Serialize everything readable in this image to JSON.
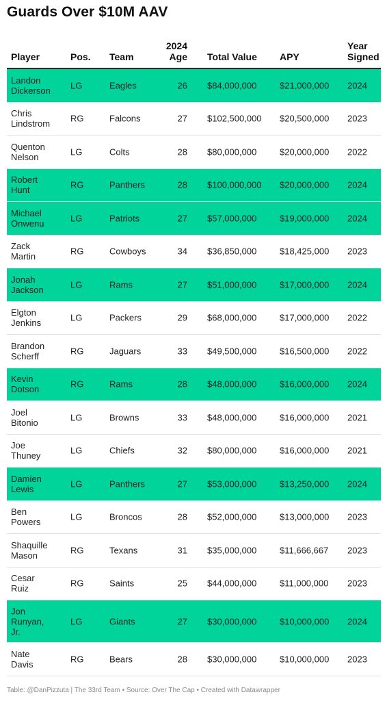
{
  "title": "Guards Over $10M AAV",
  "columns": {
    "player": "Player",
    "pos": "Pos.",
    "team": "Team",
    "age_line1": "2024",
    "age_line2": "Age",
    "total": "Total Value",
    "apy": "APY",
    "year_line1": "Year",
    "year_line2": "Signed"
  },
  "highlight_color": "#00d49a",
  "rows": [
    {
      "first": "Landon",
      "last": "Dickerson",
      "pos": "LG",
      "team": "Eagles",
      "age": "26",
      "total": "$84,000,000",
      "apy": "$21,000,000",
      "year": "2024",
      "highlight": true
    },
    {
      "first": "Chris",
      "last": "Lindstrom",
      "pos": "RG",
      "team": "Falcons",
      "age": "27",
      "total": "$102,500,000",
      "apy": "$20,500,000",
      "year": "2023",
      "highlight": false
    },
    {
      "first": "Quenton",
      "last": "Nelson",
      "pos": "LG",
      "team": "Colts",
      "age": "28",
      "total": "$80,000,000",
      "apy": "$20,000,000",
      "year": "2022",
      "highlight": false
    },
    {
      "first": "Robert",
      "last": "Hunt",
      "pos": "RG",
      "team": "Panthers",
      "age": "28",
      "total": "$100,000,000",
      "apy": "$20,000,000",
      "year": "2024",
      "highlight": true
    },
    {
      "first": "Michael",
      "last": "Onwenu",
      "pos": "LG",
      "team": "Patriots",
      "age": "27",
      "total": "$57,000,000",
      "apy": "$19,000,000",
      "year": "2024",
      "highlight": true
    },
    {
      "first": "Zack",
      "last": "Martin",
      "pos": "RG",
      "team": "Cowboys",
      "age": "34",
      "total": "$36,850,000",
      "apy": "$18,425,000",
      "year": "2023",
      "highlight": false
    },
    {
      "first": "Jonah",
      "last": "Jackson",
      "pos": "LG",
      "team": "Rams",
      "age": "27",
      "total": "$51,000,000",
      "apy": "$17,000,000",
      "year": "2024",
      "highlight": true
    },
    {
      "first": "Elgton",
      "last": "Jenkins",
      "pos": "LG",
      "team": "Packers",
      "age": "29",
      "total": "$68,000,000",
      "apy": "$17,000,000",
      "year": "2022",
      "highlight": false
    },
    {
      "first": "Brandon",
      "last": "Scherff",
      "pos": "RG",
      "team": "Jaguars",
      "age": "33",
      "total": "$49,500,000",
      "apy": "$16,500,000",
      "year": "2022",
      "highlight": false
    },
    {
      "first": "Kevin",
      "last": "Dotson",
      "pos": "RG",
      "team": "Rams",
      "age": "28",
      "total": "$48,000,000",
      "apy": "$16,000,000",
      "year": "2024",
      "highlight": true
    },
    {
      "first": "Joel",
      "last": "Bitonio",
      "pos": "LG",
      "team": "Browns",
      "age": "33",
      "total": "$48,000,000",
      "apy": "$16,000,000",
      "year": "2021",
      "highlight": false
    },
    {
      "first": "Joe",
      "last": "Thuney",
      "pos": "LG",
      "team": "Chiefs",
      "age": "32",
      "total": "$80,000,000",
      "apy": "$16,000,000",
      "year": "2021",
      "highlight": false
    },
    {
      "first": "Damien",
      "last": "Lewis",
      "pos": "LG",
      "team": "Panthers",
      "age": "27",
      "total": "$53,000,000",
      "apy": "$13,250,000",
      "year": "2024",
      "highlight": true
    },
    {
      "first": "Ben",
      "last": "Powers",
      "pos": "LG",
      "team": "Broncos",
      "age": "28",
      "total": "$52,000,000",
      "apy": "$13,000,000",
      "year": "2023",
      "highlight": false
    },
    {
      "first": "Shaquille",
      "last": "Mason",
      "pos": "RG",
      "team": "Texans",
      "age": "31",
      "total": "$35,000,000",
      "apy": "$11,666,667",
      "year": "2023",
      "highlight": false
    },
    {
      "first": "Cesar",
      "last": "Ruiz",
      "pos": "RG",
      "team": "Saints",
      "age": "25",
      "total": "$44,000,000",
      "apy": "$11,000,000",
      "year": "2023",
      "highlight": false
    },
    {
      "first": "Jon",
      "last": "Runyan,",
      "suffix": "Jr.",
      "pos": "LG",
      "team": "Giants",
      "age": "27",
      "total": "$30,000,000",
      "apy": "$10,000,000",
      "year": "2024",
      "highlight": true
    },
    {
      "first": "Nate",
      "last": "Davis",
      "pos": "RG",
      "team": "Bears",
      "age": "28",
      "total": "$30,000,000",
      "apy": "$10,000,000",
      "year": "2023",
      "highlight": false
    }
  ],
  "footer": "Table: @DanPizzuta | The 33rd Team • Source: Over The Cap • Created with Datawrapper"
}
